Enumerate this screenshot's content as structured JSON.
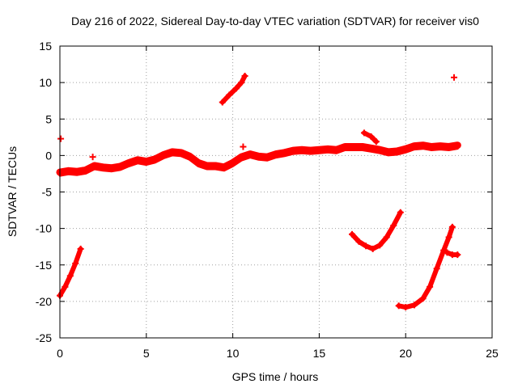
{
  "chart_data": {
    "type": "scatter",
    "title": "Day 216 of 2022, Sidereal Day-to-day VTEC variation (SDTVAR) for receiver vis0",
    "xlabel": "GPS time / hours",
    "ylabel": "SDTVAR / TECUs",
    "xlim": [
      0,
      25
    ],
    "ylim": [
      -25,
      15
    ],
    "xticks": [
      0,
      5,
      10,
      15,
      20,
      25
    ],
    "yticks": [
      -25,
      -20,
      -15,
      -10,
      -5,
      0,
      5,
      10,
      15
    ],
    "grid": true,
    "marker": "plus",
    "color": "#ff0000",
    "series": [
      {
        "name": "main-track",
        "points": [
          [
            0.0,
            -2.3
          ],
          [
            0.5,
            -2.1
          ],
          [
            1.0,
            -2.2
          ],
          [
            1.5,
            -2.0
          ],
          [
            2.0,
            -1.4
          ],
          [
            2.5,
            -1.6
          ],
          [
            3.0,
            -1.7
          ],
          [
            3.5,
            -1.5
          ],
          [
            4.0,
            -1.0
          ],
          [
            4.5,
            -0.6
          ],
          [
            5.0,
            -0.8
          ],
          [
            5.5,
            -0.5
          ],
          [
            6.0,
            0.1
          ],
          [
            6.5,
            0.5
          ],
          [
            7.0,
            0.4
          ],
          [
            7.5,
            -0.1
          ],
          [
            8.0,
            -1.0
          ],
          [
            8.5,
            -1.4
          ],
          [
            9.0,
            -1.4
          ],
          [
            9.5,
            -1.6
          ],
          [
            10.0,
            -1.0
          ],
          [
            10.5,
            -0.2
          ],
          [
            11.0,
            0.2
          ],
          [
            11.5,
            -0.1
          ],
          [
            12.0,
            -0.2
          ],
          [
            12.5,
            0.2
          ],
          [
            13.0,
            0.4
          ],
          [
            13.5,
            0.7
          ],
          [
            14.0,
            0.8
          ],
          [
            14.5,
            0.7
          ],
          [
            15.0,
            0.8
          ],
          [
            15.5,
            0.9
          ],
          [
            16.0,
            0.8
          ],
          [
            16.5,
            1.2
          ],
          [
            17.0,
            1.2
          ],
          [
            17.5,
            1.2
          ],
          [
            18.0,
            1.0
          ],
          [
            18.5,
            0.8
          ],
          [
            19.0,
            0.5
          ],
          [
            19.5,
            0.6
          ],
          [
            20.0,
            0.9
          ],
          [
            20.5,
            1.3
          ],
          [
            21.0,
            1.4
          ],
          [
            21.5,
            1.2
          ],
          [
            22.0,
            1.3
          ],
          [
            22.5,
            1.2
          ],
          [
            23.0,
            1.4
          ]
        ]
      },
      {
        "name": "arc-start",
        "points": [
          [
            0.0,
            -19.2
          ],
          [
            0.3,
            -18.0
          ],
          [
            0.6,
            -16.5
          ],
          [
            0.9,
            -14.8
          ],
          [
            1.2,
            -12.8
          ]
        ]
      },
      {
        "name": "segment-near-10h",
        "points": [
          [
            9.4,
            7.3
          ],
          [
            9.8,
            8.3
          ],
          [
            10.2,
            9.2
          ],
          [
            10.5,
            10.0
          ],
          [
            10.7,
            10.9
          ]
        ]
      },
      {
        "name": "arc-17-19h",
        "points": [
          [
            16.9,
            -10.8
          ],
          [
            17.3,
            -11.8
          ],
          [
            17.7,
            -12.4
          ],
          [
            18.1,
            -12.8
          ],
          [
            18.5,
            -12.3
          ],
          [
            18.9,
            -11.2
          ],
          [
            19.3,
            -9.6
          ],
          [
            19.7,
            -7.8
          ]
        ]
      },
      {
        "name": "arc-20-23h",
        "points": [
          [
            19.6,
            -20.6
          ],
          [
            20.0,
            -20.8
          ],
          [
            20.5,
            -20.5
          ],
          [
            21.0,
            -19.6
          ],
          [
            21.4,
            -18.0
          ],
          [
            21.8,
            -15.5
          ],
          [
            22.2,
            -13.0
          ],
          [
            22.5,
            -11.2
          ],
          [
            22.7,
            -9.8
          ]
        ]
      },
      {
        "name": "tail-23h",
        "points": [
          [
            22.4,
            -13.3
          ],
          [
            22.7,
            -13.6
          ],
          [
            23.0,
            -13.6
          ]
        ]
      },
      {
        "name": "tail-17-18h",
        "points": [
          [
            17.6,
            3.1
          ],
          [
            18.0,
            2.6
          ],
          [
            18.3,
            1.9
          ]
        ]
      }
    ],
    "single_points": [
      {
        "name": "point-start",
        "x": 0.05,
        "y": 2.3
      },
      {
        "name": "point-2h",
        "x": 1.9,
        "y": -0.2
      },
      {
        "name": "point-10h",
        "x": 10.6,
        "y": 1.2
      },
      {
        "name": "point-23h",
        "x": 22.8,
        "y": 10.7
      }
    ]
  }
}
